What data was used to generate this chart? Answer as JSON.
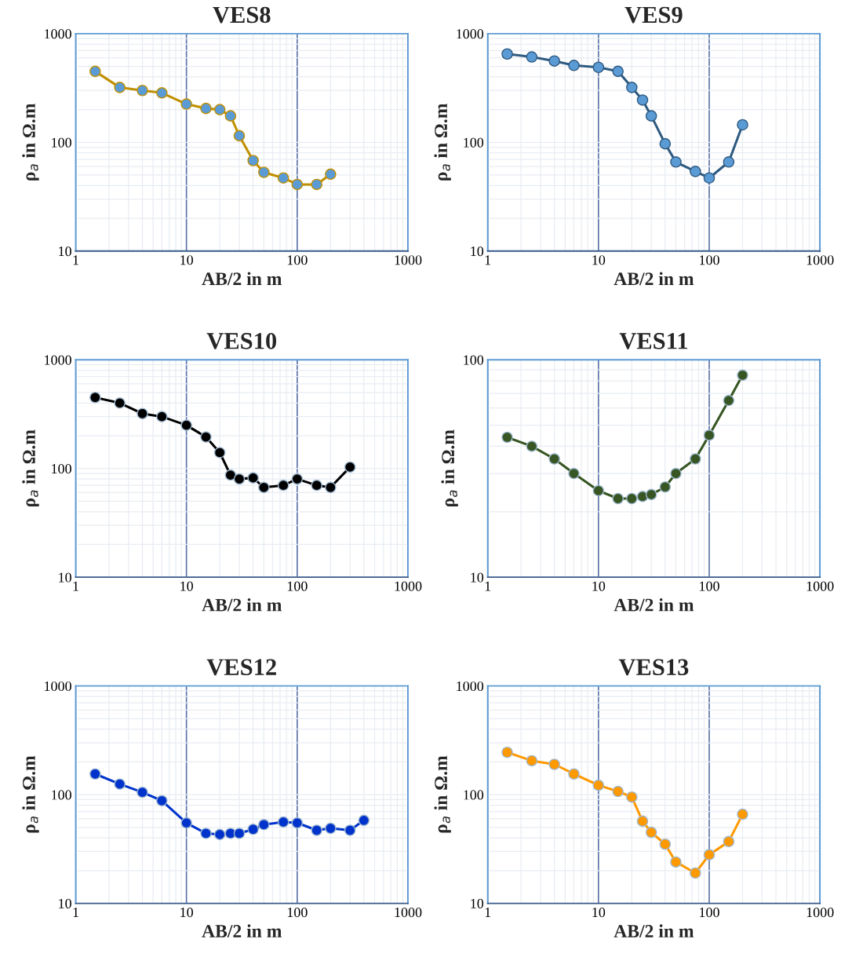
{
  "chart_data": [
    {
      "type": "line",
      "title": "VES8",
      "xlabel": "AB/2 in m",
      "ylabel": "ρ$_{a}$ in Ω.m",
      "log": "xy",
      "grid": true,
      "marker": "circle",
      "xlim": [
        1,
        1000
      ],
      "ylim": [
        10,
        1000
      ],
      "xticks": [
        1,
        10,
        100,
        1000
      ],
      "yticks": [
        10,
        100,
        1000
      ],
      "x": [
        1.5,
        2.5,
        4,
        6,
        10,
        15,
        20,
        25,
        30,
        40,
        50,
        75,
        100,
        150,
        200
      ],
      "series": [
        {
          "color": "#c09000",
          "colors": [
            "#5b9bd5",
            "#5b9bd5",
            "#5b9bd5",
            "#5b9bd5",
            "#5b9bd5",
            "#5b9bd5",
            "#5b9bd5",
            "#5b9bd5",
            "#5b9bd5",
            "#5b9bd5",
            "#5b9bd5",
            "#5b9bd5",
            "#5b9bd5",
            "#5b9bd5",
            "#5b9bd5"
          ],
          "values": [
            450,
            320,
            300,
            285,
            225,
            205,
            200,
            175,
            115,
            68,
            53,
            47,
            41,
            41,
            51
          ]
        }
      ]
    },
    {
      "type": "line",
      "title": "VES9",
      "xlabel": "AB/2 in m",
      "ylabel": "ρ$_{a}$ in Ω.m",
      "log": "xy",
      "grid": true,
      "marker": "circle",
      "xlim": [
        1,
        1000
      ],
      "ylim": [
        10,
        1000
      ],
      "xticks": [
        1,
        10,
        100,
        1000
      ],
      "yticks": [
        10,
        100,
        1000
      ],
      "x": [
        1.5,
        2.5,
        4,
        6,
        10,
        15,
        20,
        25,
        30,
        40,
        50,
        75,
        100,
        150,
        200
      ],
      "series": [
        {
          "color": "#2e5a80",
          "colors": [
            "#5b9bd5",
            "#5b9bd5",
            "#5b9bd5",
            "#5b9bd5",
            "#5b9bd5",
            "#5b9bd5",
            "#5b9bd5",
            "#5b9bd5",
            "#5b9bd5",
            "#5b9bd5",
            "#5b9bd5",
            "#5b9bd5",
            "#5b9bd5",
            "#5b9bd5",
            "#5b9bd5"
          ],
          "values": [
            650,
            610,
            560,
            510,
            490,
            450,
            320,
            245,
            175,
            97,
            66,
            54,
            47,
            66,
            145
          ]
        }
      ]
    },
    {
      "type": "line",
      "title": "VES10",
      "xlabel": "AB/2 in m",
      "ylabel": "ρ$_{a}$ in Ω.m",
      "log": "xy",
      "grid": true,
      "marker": "circle",
      "xlim": [
        1,
        1000
      ],
      "ylim": [
        10,
        1000
      ],
      "xticks": [
        1,
        10,
        100,
        1000
      ],
      "yticks": [
        10,
        100,
        1000
      ],
      "x": [
        1.5,
        2.5,
        4,
        6,
        10,
        15,
        20,
        25,
        30,
        40,
        50,
        75,
        100,
        150,
        200,
        300
      ],
      "series": [
        {
          "color": "#000000",
          "values": [
            450,
            400,
            320,
            300,
            250,
            195,
            140,
            87,
            80,
            82,
            67,
            70,
            80,
            70,
            67,
            103
          ]
        }
      ]
    },
    {
      "type": "line",
      "title": "VES11",
      "xlabel": "AB/2 in m",
      "ylabel": "ρ$_{a}$ in Ω.m",
      "log": "xy",
      "grid": true,
      "marker": "circle",
      "xlim": [
        1,
        1000
      ],
      "ylim": [
        10,
        100
      ],
      "xticks": [
        1,
        10,
        100,
        1000
      ],
      "yticks": [
        10,
        100
      ],
      "x": [
        1.5,
        2.5,
        4,
        6,
        10,
        15,
        20,
        25,
        30,
        40,
        50,
        75,
        100,
        150,
        200
      ],
      "series": [
        {
          "color": "#375623",
          "values": [
            44,
            40,
            35,
            30,
            25,
            23,
            23,
            23.5,
            24,
            26,
            30,
            35,
            45,
            65,
            85
          ]
        }
      ]
    },
    {
      "type": "line",
      "title": "VES12",
      "xlabel": "AB/2 in m",
      "ylabel": "ρ$_{a}$ in Ω.m",
      "log": "xy",
      "grid": true,
      "marker": "circle",
      "xlim": [
        1,
        1000
      ],
      "ylim": [
        10,
        1000
      ],
      "xticks": [
        1,
        10,
        100,
        1000
      ],
      "yticks": [
        10,
        100,
        1000
      ],
      "x": [
        1.5,
        2.5,
        4,
        6,
        10,
        15,
        20,
        25,
        30,
        40,
        50,
        75,
        100,
        150,
        200,
        300,
        400
      ],
      "series": [
        {
          "color": "#0033cc",
          "values": [
            155,
            125,
            105,
            88,
            55,
            44,
            43,
            44,
            44,
            48,
            53,
            56,
            55,
            47,
            49,
            47,
            58
          ]
        }
      ]
    },
    {
      "type": "line",
      "title": "VES13",
      "xlabel": "AB/2 in m",
      "ylabel": "ρ$_{a}$ in Ω.m",
      "log": "xy",
      "grid": true,
      "marker": "circle",
      "xlim": [
        1,
        1000
      ],
      "ylim": [
        10,
        1000
      ],
      "xticks": [
        1,
        10,
        100,
        1000
      ],
      "yticks": [
        10,
        100,
        1000
      ],
      "x": [
        1.5,
        2.5,
        4,
        6,
        10,
        15,
        20,
        25,
        30,
        40,
        50,
        75,
        100,
        150,
        200
      ],
      "series": [
        {
          "color": "#ff9900",
          "values": [
            245,
            205,
            190,
            155,
            122,
            107,
            95,
            57,
            45,
            35,
            24,
            19,
            28,
            37,
            66
          ]
        }
      ]
    }
  ]
}
